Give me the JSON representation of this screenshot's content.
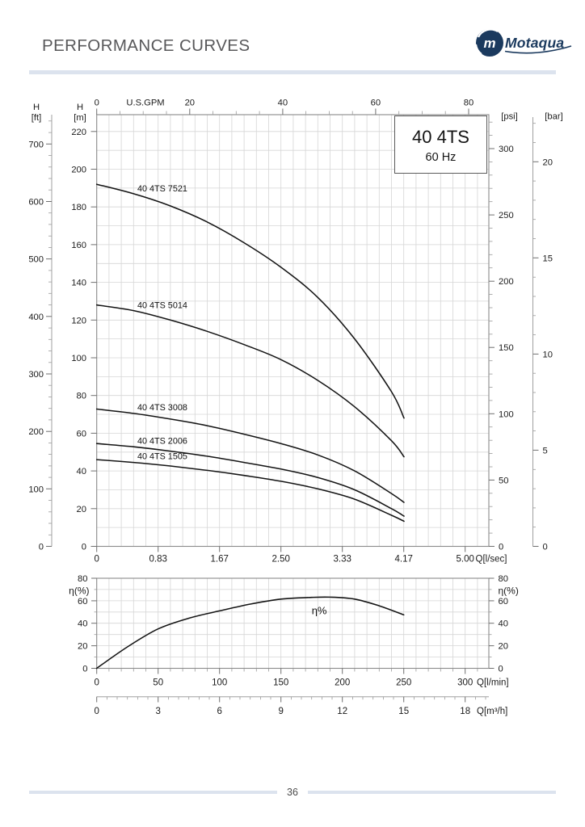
{
  "header": {
    "title": "PERFORMANCE CURVES",
    "brand": "Motaqua",
    "brand_initial": "m"
  },
  "footer": {
    "page_number": "36"
  },
  "colors": {
    "brand_navy": "#1b3a5e",
    "divider": "#dce3ee",
    "curve": "#141414",
    "grid": "#d6d6d6",
    "border": "#8a8a8a",
    "title_gray": "#58585a"
  },
  "chart_data": [
    {
      "type": "line",
      "title": "40 4TS",
      "subtitle": "60 Hz",
      "x_axis_top": {
        "label": "U.S.GPM",
        "majors": [
          0,
          20,
          40,
          60,
          80
        ],
        "minor_step": 5
      },
      "y_axis_ft": {
        "label_line1": "H",
        "label_line2": "[ft]",
        "majors": [
          0,
          100,
          200,
          300,
          400,
          500,
          600,
          700
        ],
        "minor_step": 20
      },
      "y_axis_m": {
        "label_line1": "H",
        "label_line2": "[m]",
        "majors": [
          0,
          20,
          40,
          60,
          80,
          100,
          120,
          140,
          160,
          180,
          200,
          220
        ]
      },
      "y_axis_psi": {
        "label": "[psi]",
        "majors": [
          0,
          50,
          100,
          150,
          200,
          250,
          300
        ],
        "minor_step": 10
      },
      "y_axis_bar": {
        "label": "[bar]",
        "majors": [
          0,
          5,
          10,
          15,
          20
        ],
        "minor_step": 1
      },
      "x_axis_bottom": {
        "label": "Q[l/sec]",
        "majors": [
          {
            "v": 0,
            "t": "0"
          },
          {
            "v": 0.8333,
            "t": "0.83"
          },
          {
            "v": 1.6667,
            "t": "1.67"
          },
          {
            "v": 2.5,
            "t": "2.50"
          },
          {
            "v": 3.3333,
            "t": "3.33"
          },
          {
            "v": 4.1667,
            "t": "4.17"
          },
          {
            "v": 5,
            "t": "5.00"
          }
        ]
      },
      "x_range_ls": [
        0,
        5.32
      ],
      "y_range_m": [
        0,
        228.9
      ],
      "series": [
        {
          "name": "40 4TS 7521",
          "points_ls_m": [
            [
              0,
              192
            ],
            [
              0.5,
              187
            ],
            [
              1,
              180.5
            ],
            [
              1.5,
              172
            ],
            [
              2,
              161
            ],
            [
              2.5,
              148
            ],
            [
              3,
              132
            ],
            [
              3.5,
              110
            ],
            [
              4,
              82
            ],
            [
              4.17,
              68
            ]
          ]
        },
        {
          "name": "40 4TS 5014",
          "points_ls_m": [
            [
              0,
              128
            ],
            [
              0.5,
              125
            ],
            [
              1,
              120
            ],
            [
              1.5,
              114
            ],
            [
              2,
              107
            ],
            [
              2.5,
              99
            ],
            [
              3,
              88
            ],
            [
              3.5,
              74
            ],
            [
              4,
              56
            ],
            [
              4.17,
              47.5
            ]
          ]
        },
        {
          "name": "40 4TS 3008",
          "points_ls_m": [
            [
              0,
              72.8
            ],
            [
              0.5,
              70.5
            ],
            [
              1,
              67.5
            ],
            [
              1.5,
              64
            ],
            [
              2,
              59.5
            ],
            [
              2.5,
              54.5
            ],
            [
              3,
              48.5
            ],
            [
              3.5,
              40
            ],
            [
              4,
              28
            ],
            [
              4.17,
              23.3
            ]
          ]
        },
        {
          "name": "40 4TS 2006",
          "points_ls_m": [
            [
              0,
              54.5
            ],
            [
              0.5,
              52.8
            ],
            [
              1,
              50.5
            ],
            [
              1.5,
              47.8
            ],
            [
              2,
              44.5
            ],
            [
              2.5,
              41
            ],
            [
              3,
              36.5
            ],
            [
              3.5,
              30
            ],
            [
              4,
              20
            ],
            [
              4.17,
              16
            ]
          ]
        },
        {
          "name": "40 4TS 1505",
          "points_ls_m": [
            [
              0,
              46
            ],
            [
              0.5,
              44.5
            ],
            [
              1,
              42.6
            ],
            [
              1.5,
              40.3
            ],
            [
              2,
              37.6
            ],
            [
              2.5,
              34.5
            ],
            [
              3,
              30.5
            ],
            [
              3.5,
              25
            ],
            [
              4,
              16.5
            ],
            [
              4.17,
              13.3
            ]
          ]
        }
      ]
    },
    {
      "type": "line",
      "y_axis": {
        "label": "η(%)",
        "majors": [
          0,
          20,
          40,
          60,
          80
        ],
        "minor_step": 10
      },
      "x_axis_lmin": {
        "label": "Q[l/min]",
        "majors": [
          0,
          50,
          100,
          150,
          200,
          250,
          300
        ],
        "minor_step": 10
      },
      "x_axis_m3h": {
        "label": "Q[m³/h]",
        "majors": [
          0,
          3,
          6,
          9,
          12,
          15,
          18
        ],
        "minor_step": 0.5
      },
      "annotation": {
        "text": "η%",
        "q_lmin": 175,
        "pct": 48
      },
      "series": [
        {
          "name": "η%",
          "points_lmin_pct": [
            [
              0,
              0
            ],
            [
              25,
              19
            ],
            [
              50,
              35
            ],
            [
              75,
              44.5
            ],
            [
              100,
              51
            ],
            [
              125,
              57
            ],
            [
              150,
              61.5
            ],
            [
              175,
              63
            ],
            [
              190,
              63.2
            ],
            [
              210,
              61.5
            ],
            [
              230,
              55.5
            ],
            [
              250,
              47.5
            ]
          ]
        }
      ]
    }
  ]
}
